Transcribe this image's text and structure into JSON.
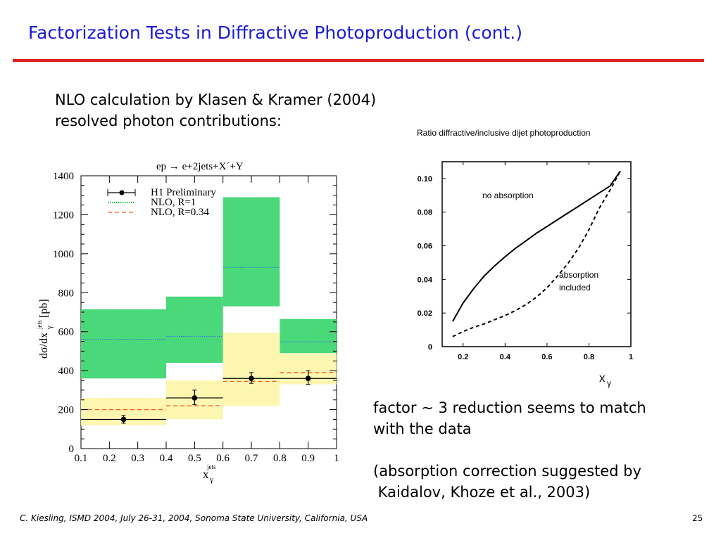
{
  "slide": {
    "title": "Factorization Tests in Diffractive Photoproduction (cont.)",
    "title_color": "#1a1ad8",
    "rule_color": "#e02020",
    "intro_line1": "NLO calculation by Klasen & Kramer (2004)",
    "intro_line2": "resolved photon contributions:",
    "note1_line1": "factor ~ 3 reduction seems to match",
    "note1_line2": "with the data",
    "note2_line1": "(absorption correction suggested by",
    "note2_line2": " Kaidalov, Khoze et al., 2003)",
    "footer": "C. Kiesling, ISMD 2004, July 26-31, 2004, Sonoma State University, California, USA",
    "page_number": "25"
  },
  "chart_data": [
    {
      "type": "bar",
      "title": "ep → e+2jets+X´+Y",
      "ylabel": "dσ/dx_γ^jets [pb]",
      "xlabel": "x_γ^jets",
      "xlim": [
        0.1,
        1.0
      ],
      "ylim": [
        0,
        1400
      ],
      "x_ticks": [
        "0.1",
        "0.2",
        "0.3",
        "0.4",
        "0.5",
        "0.6",
        "0.7",
        "0.8",
        "0.9",
        "1"
      ],
      "y_ticks": [
        "0",
        "200",
        "400",
        "600",
        "800",
        "1000",
        "1200",
        "1400"
      ],
      "bins": [
        [
          0.1,
          0.4
        ],
        [
          0.4,
          0.6
        ],
        [
          0.6,
          0.8
        ],
        [
          0.8,
          1.0
        ]
      ],
      "legend": [
        "H1 Preliminary",
        "NLO, R=1",
        "NLO, R=0.34"
      ],
      "legend_position": "top-left",
      "series": [
        {
          "name": "H1 Preliminary",
          "points": [
            {
              "x": 0.25,
              "y": 150,
              "yerr": [
                130,
                170
              ]
            },
            {
              "x": 0.5,
              "y": 260,
              "yerr": [
                225,
                300
              ]
            },
            {
              "x": 0.7,
              "y": 360,
              "yerr": [
                335,
                390
              ]
            },
            {
              "x": 0.9,
              "y": 360,
              "yerr": [
                330,
                400
              ]
            }
          ],
          "color": "#000000"
        },
        {
          "name": "NLO, R=1",
          "central": [
            560,
            575,
            930,
            548
          ],
          "low": [
            360,
            440,
            730,
            490
          ],
          "high": [
            715,
            780,
            1290,
            665
          ],
          "color": "#2ec15a",
          "band_color": "#4ad97a"
        },
        {
          "name": "NLO, R=0.34",
          "central": [
            200,
            220,
            345,
            390
          ],
          "low": [
            120,
            150,
            220,
            330
          ],
          "high": [
            260,
            350,
            595,
            488
          ],
          "color": "#ff5a1e",
          "band_color": "#fdf6ad"
        }
      ]
    },
    {
      "type": "line",
      "title": "Ratio diffractive/inclusive dijet photoproduction",
      "xlabel": "x_γ",
      "ylabel": "",
      "xlim": [
        0.1,
        1.0
      ],
      "ylim": [
        0,
        0.11
      ],
      "x_ticks": [
        "0.2",
        "0.4",
        "0.6",
        "0.8",
        "1"
      ],
      "y_ticks": [
        "0",
        "0.02",
        "0.04",
        "0.06",
        "0.08",
        "0.10"
      ],
      "series": [
        {
          "name": "no absorption",
          "style": "solid",
          "x": [
            0.15,
            0.2,
            0.25,
            0.3,
            0.35,
            0.4,
            0.45,
            0.5,
            0.55,
            0.6,
            0.65,
            0.7,
            0.75,
            0.8,
            0.85,
            0.9,
            0.95
          ],
          "y": [
            0.015,
            0.026,
            0.0345,
            0.042,
            0.048,
            0.0535,
            0.0585,
            0.063,
            0.0675,
            0.0715,
            0.0755,
            0.0795,
            0.0835,
            0.0875,
            0.0915,
            0.0955,
            0.1045
          ]
        },
        {
          "name": "absorption included",
          "style": "dashed",
          "x": [
            0.15,
            0.2,
            0.25,
            0.3,
            0.35,
            0.4,
            0.45,
            0.5,
            0.55,
            0.6,
            0.65,
            0.7,
            0.75,
            0.8,
            0.85,
            0.9,
            0.95
          ],
          "y": [
            0.006,
            0.009,
            0.0115,
            0.0135,
            0.016,
            0.0185,
            0.0215,
            0.025,
            0.0295,
            0.035,
            0.042,
            0.0495,
            0.0585,
            0.0695,
            0.0825,
            0.093,
            0.1045
          ]
        }
      ],
      "annotations": [
        "no absorption",
        "absorption\nincluded"
      ]
    }
  ]
}
